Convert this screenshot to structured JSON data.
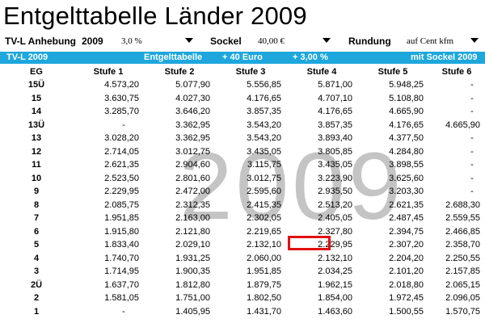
{
  "title": "Entgelttabelle Länder 2009",
  "controls": {
    "anhebung_label": "TV-L Anhebung",
    "year": "2009",
    "anhebung_value": "3,0 %",
    "sockel_label": "Sockel",
    "sockel_value": "40,00 €",
    "rundung_label": "Rundung",
    "rundung_value": "auf Cent kfm"
  },
  "headerbar": {
    "left": "TV-L 2009",
    "entgelttabelle": "Entgelttabelle",
    "plus_euro": "+ 40 Euro",
    "plus_percent": "+ 3,00 %",
    "right": "mit Sockel 2009"
  },
  "watermark": "2009",
  "table": {
    "columns": [
      "EG",
      "Stufe 1",
      "Stufe 2",
      "Stufe 3",
      "Stufe 4",
      "Stufe 5",
      "Stufe 6"
    ],
    "rows": [
      {
        "eg": "15Ü",
        "values": [
          "4.573,20",
          "5.077,90",
          "5.556,85",
          "5.871,00",
          "5.948,25",
          "-"
        ]
      },
      {
        "eg": "15",
        "values": [
          "3.630,75",
          "4.027,30",
          "4.176,65",
          "4.707,10",
          "5.108,80",
          "-"
        ]
      },
      {
        "eg": "14",
        "values": [
          "3.285,70",
          "3.646,20",
          "3.857,35",
          "4.176,65",
          "4.665,90",
          "-"
        ]
      },
      {
        "eg": "13Ü",
        "values": [
          "-",
          "3.362,95",
          "3.543,20",
          "3.857,35",
          "4.176,65",
          "4.665,90"
        ]
      },
      {
        "eg": "13",
        "values": [
          "3.028,20",
          "3.362,95",
          "3.543,20",
          "3.893,40",
          "4.377,50",
          "-"
        ]
      },
      {
        "eg": "12",
        "values": [
          "2.714,05",
          "3.012,75",
          "3.435,05",
          "3.805,85",
          "4.284,80",
          "-"
        ]
      },
      {
        "eg": "11",
        "values": [
          "2.621,35",
          "2.904,60",
          "3.115,75",
          "3.435,05",
          "3.898,55",
          "-"
        ]
      },
      {
        "eg": "10",
        "values": [
          "2.523,50",
          "2.801,60",
          "3.012,75",
          "3.223,90",
          "3.625,60",
          "-"
        ]
      },
      {
        "eg": "9",
        "values": [
          "2.229,95",
          "2.472,00",
          "2.595,60",
          "2.935,50",
          "3.203,30",
          "-"
        ]
      },
      {
        "eg": "8",
        "values": [
          "2.085,75",
          "2.312,35",
          "2.415,35",
          "2.513,20",
          "2.621,35",
          "2.688,30"
        ]
      },
      {
        "eg": "7",
        "values": [
          "1.951,85",
          "2.163,00",
          "2.302,05",
          "2.405,05",
          "2.487,45",
          "2.559,55"
        ]
      },
      {
        "eg": "6",
        "values": [
          "1.915,80",
          "2.121,80",
          "2.219,65",
          "2.327,80",
          "2.394,75",
          "2.466,85"
        ]
      },
      {
        "eg": "5",
        "values": [
          "1.833,40",
          "2.029,10",
          "2.132,10",
          "2.229,95",
          "2.307,20",
          "2.358,70"
        ]
      },
      {
        "eg": "4",
        "values": [
          "1.740,70",
          "1.931,25",
          "2.060,00",
          "2.132,10",
          "2.204,20",
          "2.250,55"
        ]
      },
      {
        "eg": "3",
        "values": [
          "1.714,95",
          "1.900,35",
          "1.951,85",
          "2.034,25",
          "2.101,20",
          "2.157,85"
        ]
      },
      {
        "eg": "2Ü",
        "values": [
          "1.637,70",
          "1.812,80",
          "1.879,75",
          "1.962,15",
          "2.018,80",
          "2.065,15"
        ]
      },
      {
        "eg": "2",
        "values": [
          "1.581,05",
          "1.751,00",
          "1.802,50",
          "1.854,00",
          "1.972,45",
          "2.096,05"
        ]
      },
      {
        "eg": "1",
        "values": [
          "-",
          "1.405,95",
          "1.431,70",
          "1.463,60",
          "1.500,55",
          "1.570,75"
        ]
      }
    ]
  }
}
